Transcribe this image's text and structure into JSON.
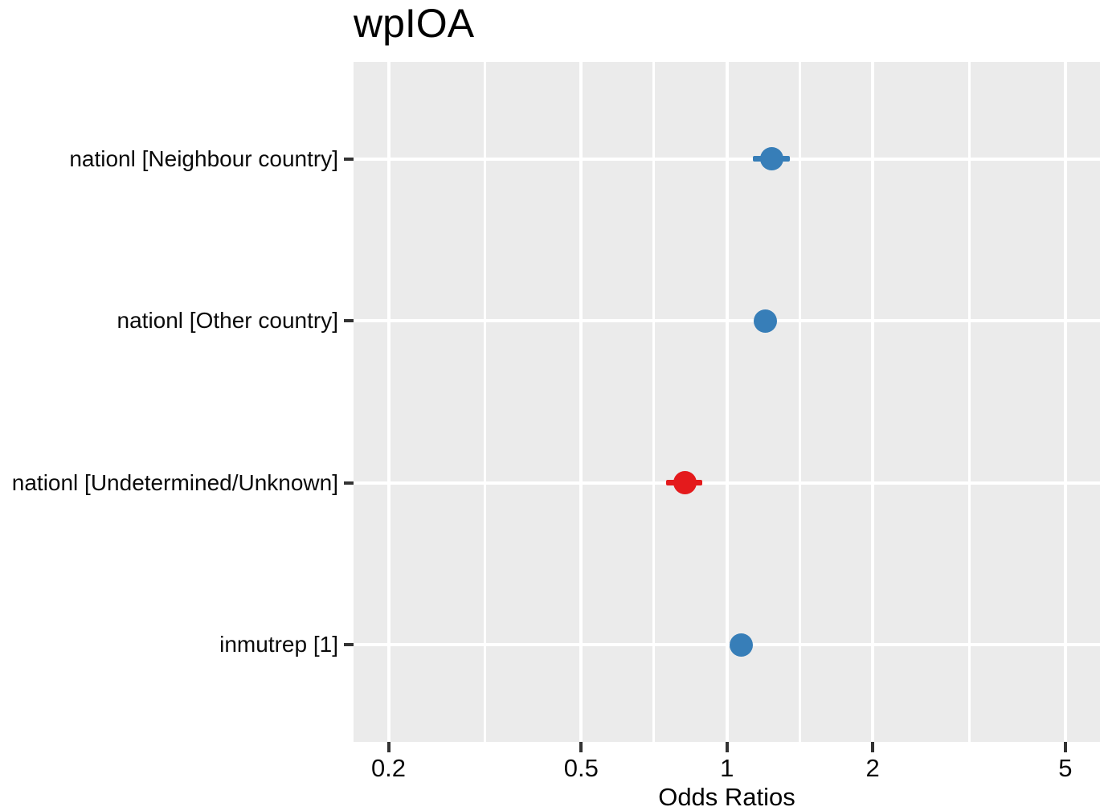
{
  "chart_data": {
    "type": "scatter",
    "subtype": "forest-dot-whisker",
    "title": "wpIOA",
    "xlabel": "Odds Ratios",
    "ylabel": "",
    "x_scale": "log10",
    "x_ticks": [
      0.2,
      0.5,
      1,
      2,
      5
    ],
    "x_tick_labels": [
      "0.2",
      "0.5",
      "1",
      "2",
      "5"
    ],
    "x_minor_gridlines": [
      0.3162,
      0.7071,
      1.4142,
      3.1623
    ],
    "xlim": [
      0.169,
      5.89
    ],
    "grid": "on",
    "legend": "none",
    "points": [
      {
        "label": "nationl [Neighbour country]",
        "or": 1.24,
        "ci_low": 1.13,
        "ci_high": 1.35,
        "direction": "positive"
      },
      {
        "label": "nationl [Other country]",
        "or": 1.2,
        "ci_low": 1.16,
        "ci_high": 1.24,
        "direction": "positive"
      },
      {
        "label": "nationl [Undetermined/Unknown]",
        "or": 0.82,
        "ci_low": 0.75,
        "ci_high": 0.89,
        "direction": "negative"
      },
      {
        "label": "inmutrep [1]",
        "or": 1.07,
        "ci_low": 1.04,
        "ci_high": 1.11,
        "direction": "positive"
      }
    ],
    "colors": {
      "positive": "#377EB8",
      "negative": "#E41A1C",
      "panel_bg": "#EBEBEB",
      "grid_major": "#FFFFFF",
      "grid_minor": "#FFFFFF",
      "tick_mark": "#333333",
      "text": "#0a0a0a"
    }
  }
}
